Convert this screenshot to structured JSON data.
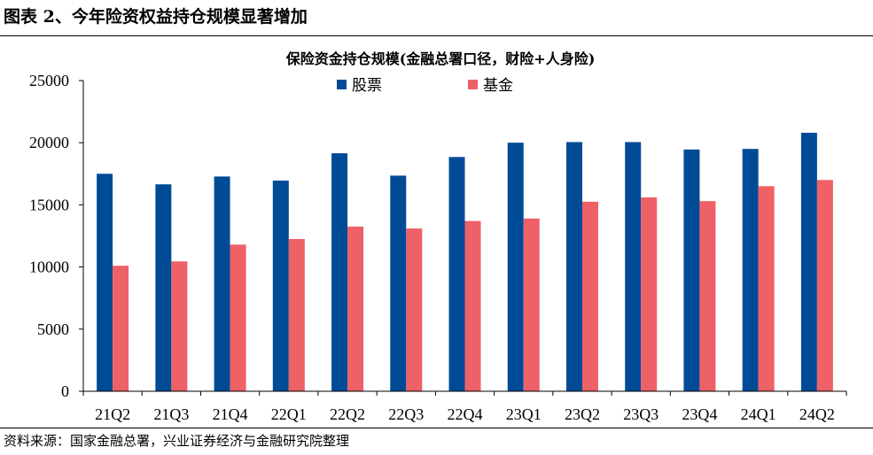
{
  "figure_title": "图表 2、今年险资权益持仓规模显著增加",
  "source_note": "资料来源：国家金融总署，兴业证券经济与金融研究院整理",
  "colors": {
    "stocks": "#004B96",
    "funds": "#EE6166",
    "axis": "#000000"
  },
  "chart_data": {
    "type": "bar",
    "title": "保险资金持仓规模(金融总署口径，财险+人身险)",
    "categories": [
      "21Q2",
      "21Q3",
      "21Q4",
      "22Q1",
      "22Q2",
      "22Q3",
      "22Q4",
      "23Q1",
      "23Q2",
      "23Q3",
      "23Q4",
      "24Q1",
      "24Q2"
    ],
    "series": [
      {
        "name": "股票",
        "values": [
          17500,
          16650,
          17280,
          16950,
          19150,
          17350,
          18850,
          20000,
          20050,
          20050,
          19450,
          19500,
          20800
        ]
      },
      {
        "name": "基金",
        "values": [
          10100,
          10450,
          11800,
          12250,
          13250,
          13100,
          13700,
          13900,
          15250,
          15600,
          15300,
          16500,
          17000
        ]
      }
    ],
    "xlabel": "",
    "ylabel": "",
    "ylim": [
      0,
      25000
    ],
    "yticks": [
      0,
      5000,
      10000,
      15000,
      20000,
      25000
    ],
    "grid": false,
    "legend_position": "top-left"
  }
}
